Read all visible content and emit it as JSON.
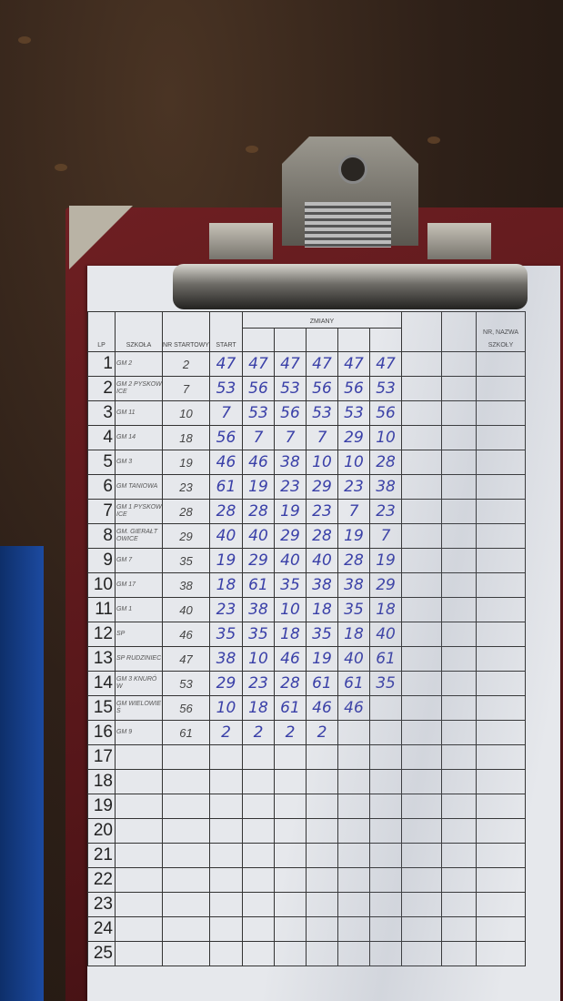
{
  "header": {
    "lp": "LP",
    "school": "SZKOŁA",
    "nr": "NR STARTOWY",
    "start": "START",
    "changes": "ZMIANY",
    "place_nr": "NR, NAZWA",
    "place_school": "SZKOŁY"
  },
  "ink_color": "#3a40a8",
  "rows": [
    {
      "lp": "1",
      "school": "GM 2",
      "nr": "2",
      "start": "47",
      "changes": [
        "47",
        "47",
        "47",
        "47",
        "47"
      ]
    },
    {
      "lp": "2",
      "school": "GM 2 PYSKOWICE",
      "nr": "7",
      "start": "53",
      "changes": [
        "56",
        "53",
        "56",
        "56",
        "53"
      ]
    },
    {
      "lp": "3",
      "school": "GM 11",
      "nr": "10",
      "start": "7",
      "changes": [
        "53",
        "56",
        "53",
        "53",
        "56"
      ]
    },
    {
      "lp": "4",
      "school": "GM 14",
      "nr": "18",
      "start": "56",
      "changes": [
        "7",
        "7",
        "7",
        "29",
        "10"
      ]
    },
    {
      "lp": "5",
      "school": "GM 3",
      "nr": "19",
      "start": "46",
      "changes": [
        "46",
        "38",
        "10",
        "10",
        "28"
      ]
    },
    {
      "lp": "6",
      "school": "GM TANIOWA",
      "nr": "23",
      "start": "61",
      "changes": [
        "19",
        "23",
        "29",
        "23",
        "38"
      ]
    },
    {
      "lp": "7",
      "school": "GM 1 PYSKOWICE",
      "nr": "28",
      "start": "28",
      "changes": [
        "28",
        "19",
        "23",
        "7",
        "23"
      ]
    },
    {
      "lp": "8",
      "school": "GM. GIERAŁTOWICE",
      "nr": "29",
      "start": "40",
      "changes": [
        "40",
        "29",
        "28",
        "19",
        "7"
      ]
    },
    {
      "lp": "9",
      "school": "GM 7",
      "nr": "35",
      "start": "19",
      "changes": [
        "29",
        "40",
        "40",
        "28",
        "19"
      ]
    },
    {
      "lp": "10",
      "school": "GM 17",
      "nr": "38",
      "start": "18",
      "changes": [
        "61",
        "35",
        "38",
        "38",
        "29"
      ]
    },
    {
      "lp": "11",
      "school": "GM 1",
      "nr": "40",
      "start": "23",
      "changes": [
        "38",
        "10",
        "18",
        "35",
        "18"
      ]
    },
    {
      "lp": "12",
      "school": "SP",
      "nr": "46",
      "start": "35",
      "changes": [
        "35",
        "18",
        "35",
        "18",
        "40"
      ]
    },
    {
      "lp": "13",
      "school": "SP RUDZINIEC",
      "nr": "47",
      "start": "38",
      "changes": [
        "10",
        "46",
        "19",
        "40",
        "61"
      ]
    },
    {
      "lp": "14",
      "school": "GM 3 KNURÓW",
      "nr": "53",
      "start": "29",
      "changes": [
        "23",
        "28",
        "61",
        "61",
        "35"
      ]
    },
    {
      "lp": "15",
      "school": "GM WIELOWIEŚ",
      "nr": "56",
      "start": "10",
      "changes": [
        "18",
        "61",
        "46",
        "46",
        ""
      ]
    },
    {
      "lp": "16",
      "school": "GM 9",
      "nr": "61",
      "start": "2",
      "changes": [
        "2",
        "2",
        "2",
        "",
        ""
      ]
    },
    {
      "lp": "17"
    },
    {
      "lp": "18"
    },
    {
      "lp": "19"
    },
    {
      "lp": "20"
    },
    {
      "lp": "21"
    },
    {
      "lp": "22"
    },
    {
      "lp": "23"
    },
    {
      "lp": "24"
    },
    {
      "lp": "25"
    }
  ]
}
